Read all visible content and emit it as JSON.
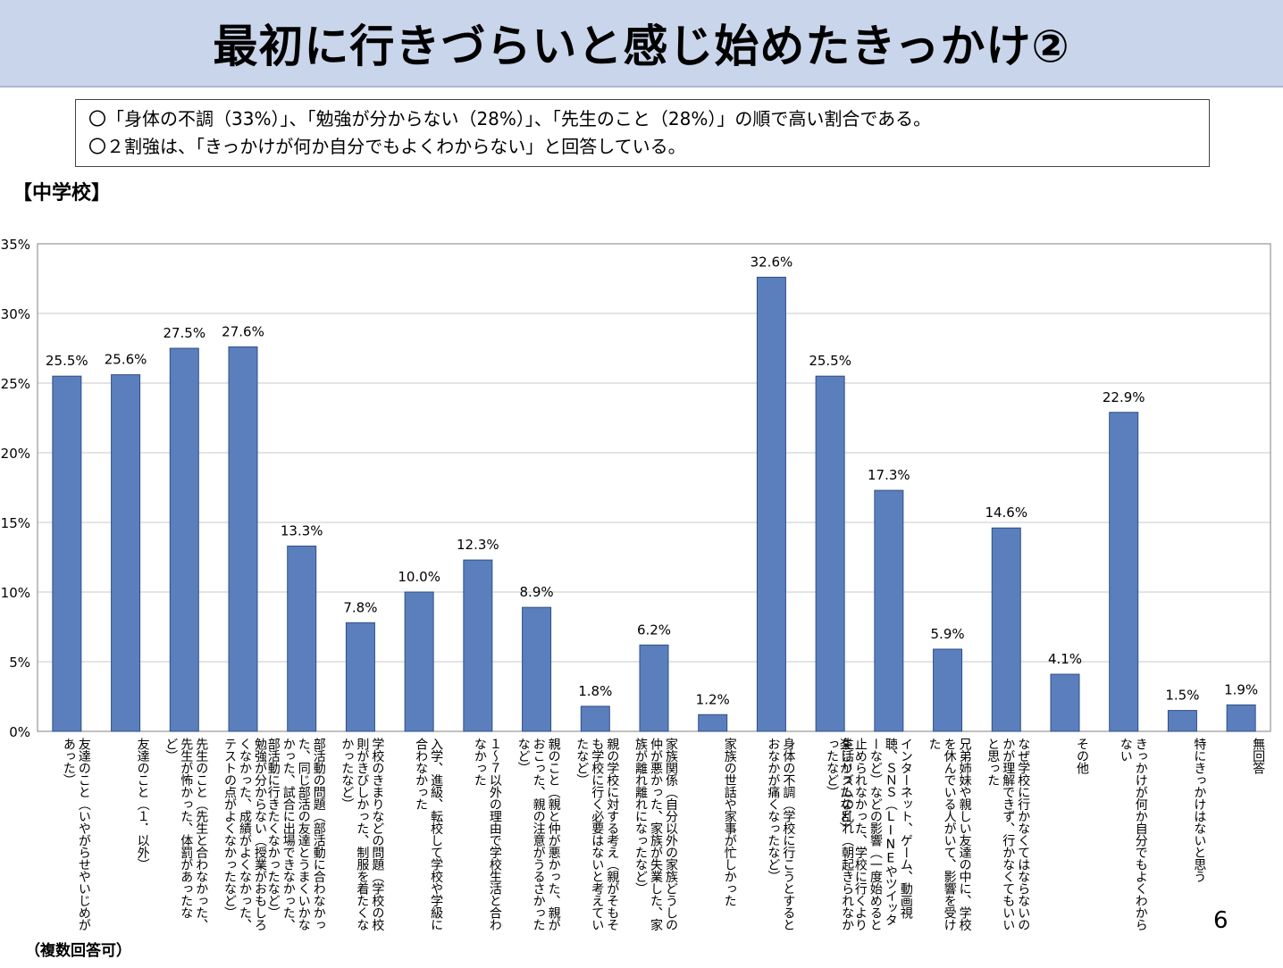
{
  "title": "最初に行きづらいと感じ始めたきっかけ②",
  "summary": [
    "〇「身体の不調（33%）」、「勉強が分からない（28%）」、「先生のこと（28%）」の順で高い割合である。",
    "〇２割強は、「きっかけが何か自分でもよくわからない」と回答している。"
  ],
  "section_label": "【中学校】",
  "footnote": "（複数回答可）",
  "page_number": "6",
  "colors": {
    "bar": "#5b7fbd",
    "bar_stroke": "#2f4f86",
    "title_bg": "#c9d5ea",
    "grid": "#c8c8c8"
  },
  "chart_data": {
    "type": "bar",
    "ylim": [
      0,
      35
    ],
    "y_ticks": [
      "0%",
      "5%",
      "10%",
      "15%",
      "20%",
      "25%",
      "30%",
      "35%"
    ],
    "categories": [
      "友達のこと（いやがらせやいじめがあった）",
      "友達のこと（１．以外）",
      "先生のこと（先生と合わなかった、先生が怖かった、体罰があったなど）",
      "勉強が分からない（授業がおもしろくなかった、成績がよくなかった、テストの点がよくなかったなど）",
      "部活動の問題（部活動に合わなかった、同じ部活の友達とうまくいかなかった、試合に出場できなかった、部活動に行きたくなかったなど）",
      "学校のきまりなどの問題（学校の校則がきびしかった、制服を着たくなかったなど）",
      "入学、進級、転校して学校や学級に合わなかった",
      "１～７以外の理由で学校生活と合わなかった",
      "親のこと（親と仲が悪かった、親がおこった、親の注意がうるさかったなど）",
      "親の学校に対する考え（親がそもそも学校に行く必要はないと考えていたなど）",
      "家族関係（自分以外の家族どうしの仲が悪かった、家族が失業した、家族が離れ離れになったなど）",
      "家族の世話や家事が忙しかった",
      "身体の不調（学校に行こうとするとおなかが痛くなったなど）",
      "生活リズムの乱れ（朝起きられなかったなど）",
      "インターネット、ゲーム、動画視聴、ＳＮＳ（LINEやツイッターなど）などの影響（一度始めると止められなかった、学校に行くより楽しかったなど）",
      "兄弟姉妹や親しい友達の中に、学校を休んでいる人がいて、影響を受けた",
      "なぜ学校に行かなくてはならないのかが理解できず、行かなくてもいいと思った",
      "その他",
      "きっかけが何か自分でもよくわからない",
      "特にきっかけはないと思う",
      "無回答"
    ],
    "values": [
      25.5,
      25.6,
      27.5,
      27.6,
      13.3,
      7.8,
      10.0,
      12.3,
      8.9,
      1.8,
      6.2,
      1.2,
      32.6,
      25.5,
      17.3,
      5.9,
      14.6,
      4.1,
      22.9,
      1.5,
      1.9
    ],
    "value_labels": [
      "25.5%",
      "25.6%",
      "27.5%",
      "27.6%",
      "13.3%",
      "7.8%",
      "10.0%",
      "12.3%",
      "8.9%",
      "1.8%",
      "6.2%",
      "1.2%",
      "32.6%",
      "25.5%",
      "17.3%",
      "5.9%",
      "14.6%",
      "4.1%",
      "22.9%",
      "1.5%",
      "1.9%"
    ]
  }
}
